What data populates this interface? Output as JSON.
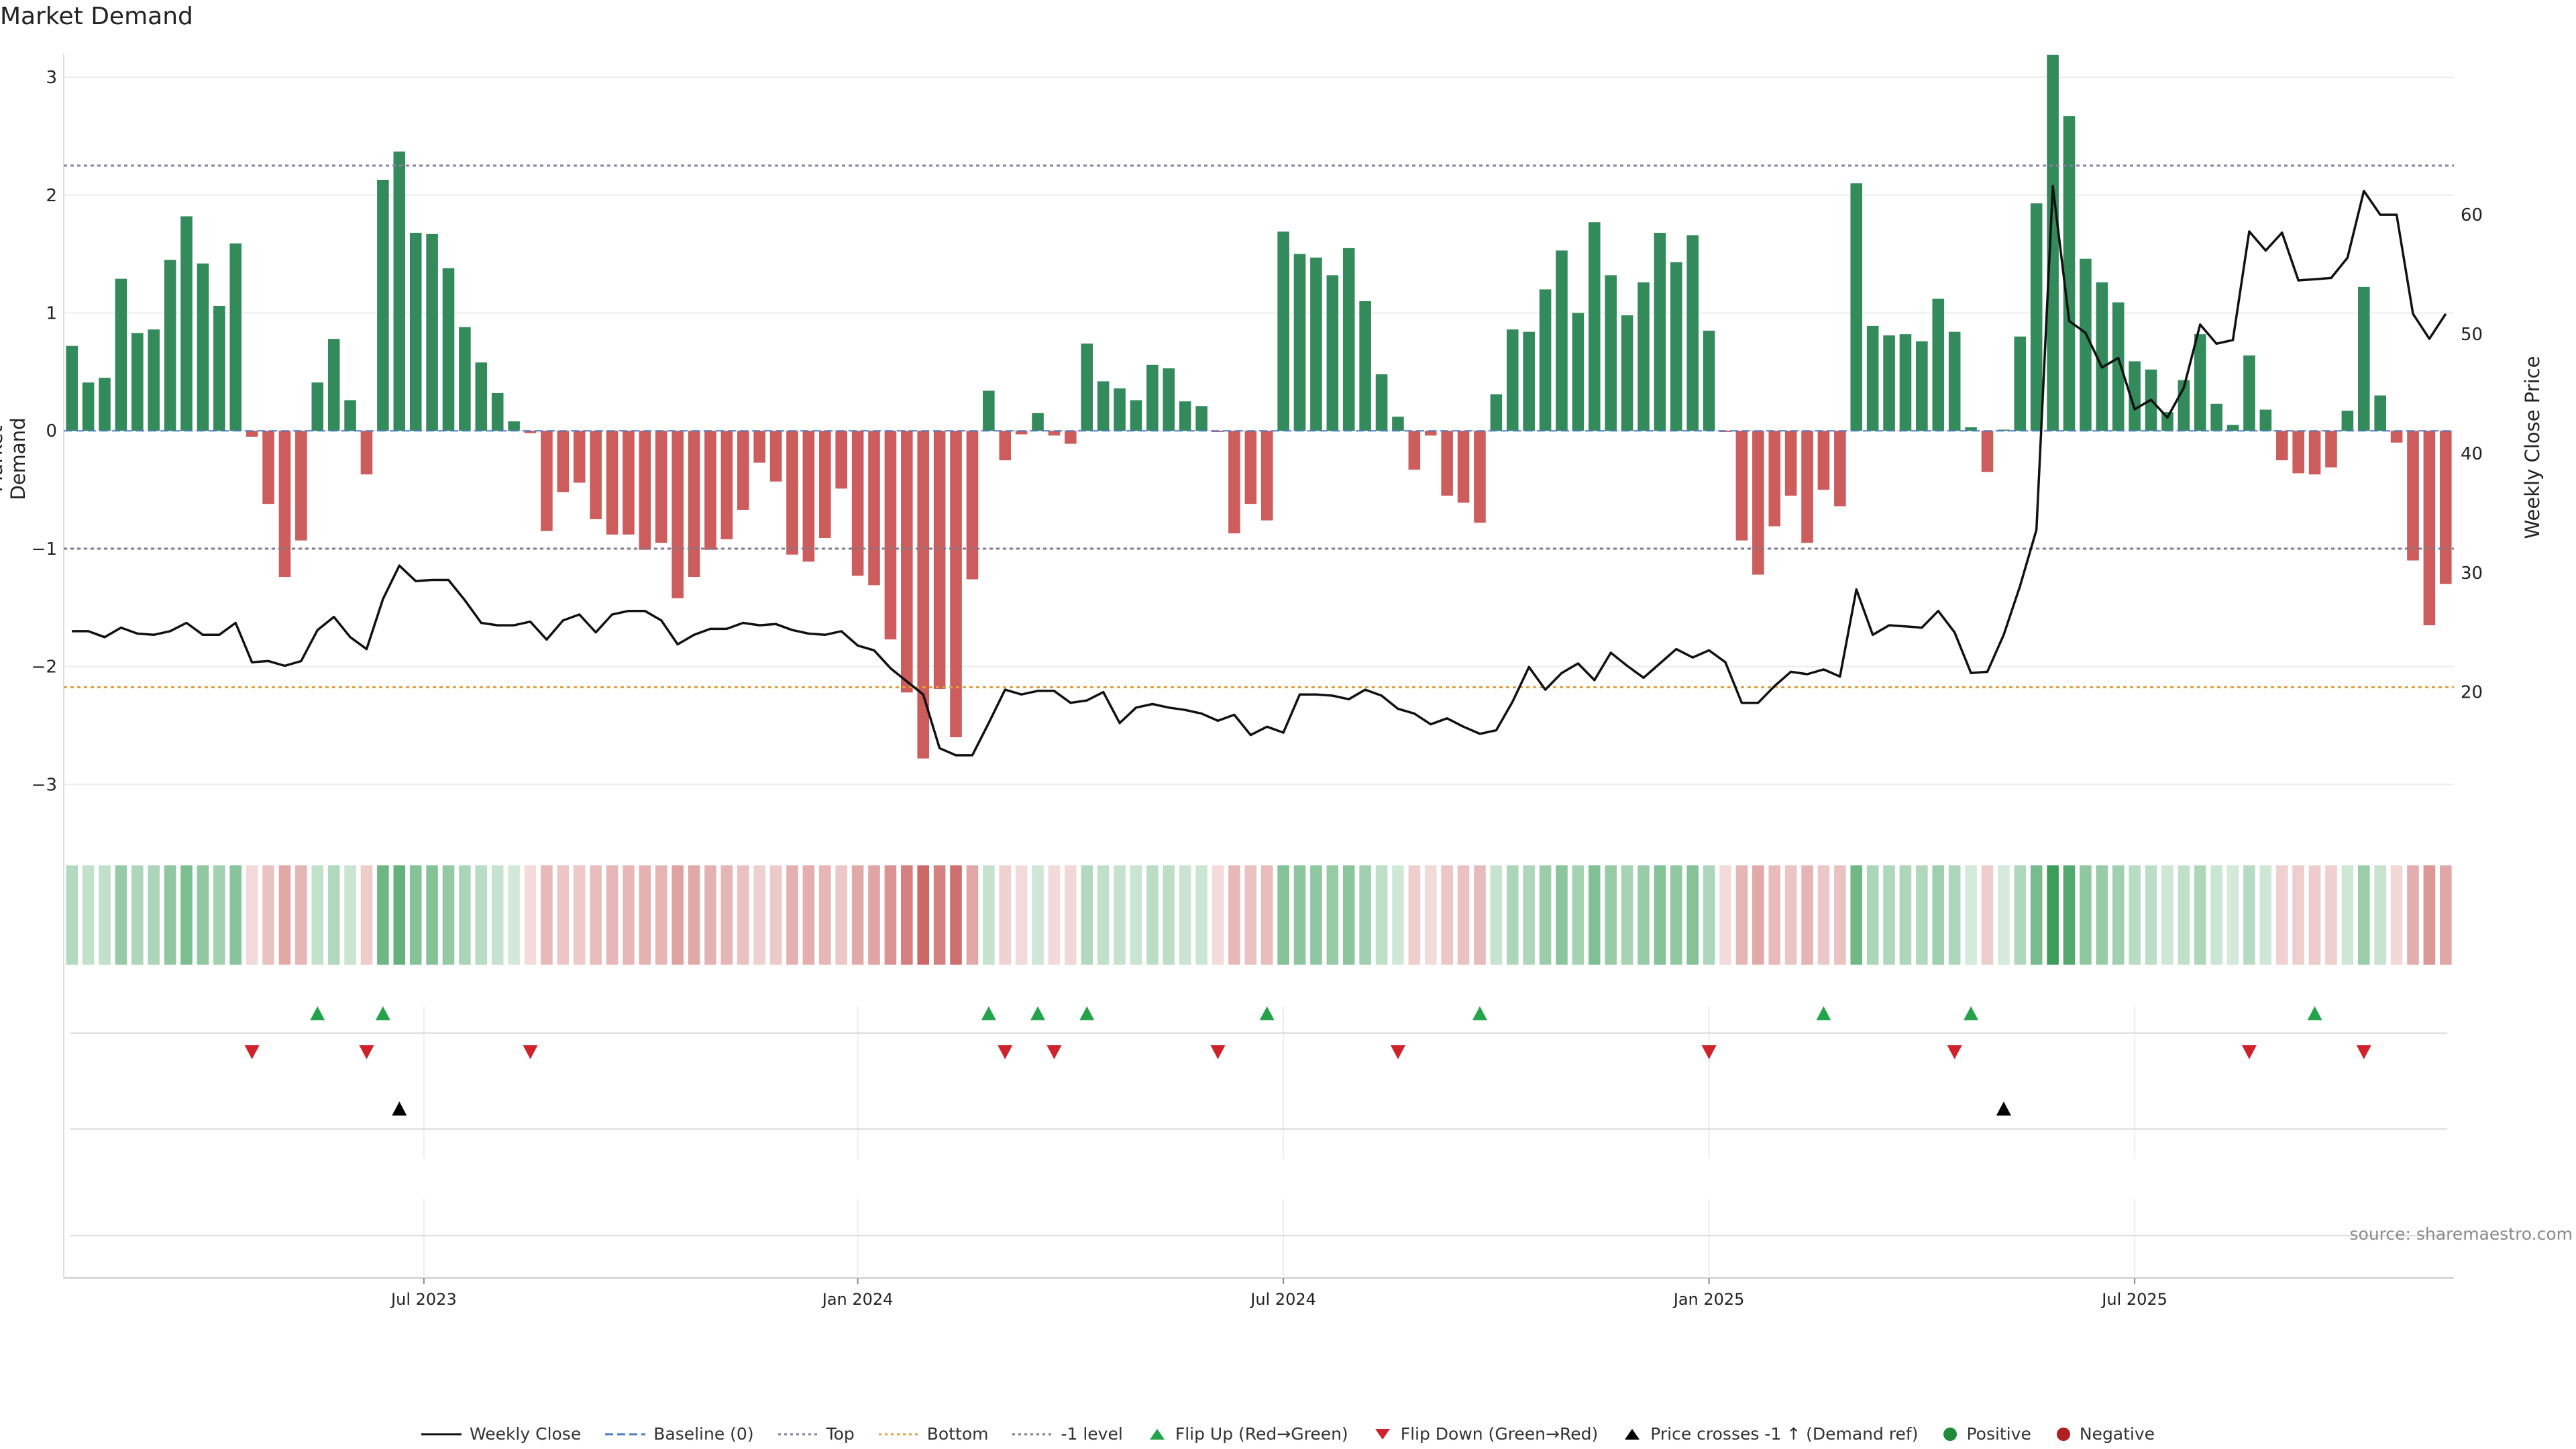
{
  "chart_data": {
    "type": "bar",
    "title": "Market Demand",
    "ylabel": "Market Demand",
    "ylabel_right": "Weekly Close Price",
    "ylim": [
      -3.3,
      3.2
    ],
    "ylim_right": [
      9.3,
      73.5
    ],
    "yticks": [
      "3",
      "2",
      "1",
      "0",
      "−1",
      "−2",
      "−3"
    ],
    "yticks_values": [
      3,
      2,
      1,
      0,
      -1,
      -2,
      -3
    ],
    "yticks_right": [
      "60",
      "50",
      "40",
      "30",
      "20"
    ],
    "yticks_right_values": [
      60,
      50,
      40,
      30,
      20
    ],
    "xticks": [
      "Jul 2023",
      "Jan 2024",
      "Jul 2024",
      "Jan 2025",
      "Jul 2025"
    ],
    "xticks_week_index": [
      22,
      48.5,
      74.5,
      100.5,
      126.5
    ],
    "reference_lines": {
      "top": 2.25,
      "bottom_price": 20.4,
      "minus_one": -1,
      "baseline": 0
    },
    "series": [
      {
        "name": "Market Demand",
        "values": [
          0.72,
          0.41,
          0.45,
          1.29,
          0.83,
          0.86,
          1.45,
          1.82,
          1.42,
          1.06,
          1.59,
          -0.05,
          -0.62,
          -1.24,
          -0.93,
          0.41,
          0.78,
          0.26,
          -0.37,
          2.13,
          2.37,
          1.68,
          1.67,
          1.38,
          0.88,
          0.58,
          0.32,
          0.08,
          -0.02,
          -0.85,
          -0.52,
          -0.44,
          -0.75,
          -0.88,
          -0.88,
          -1.01,
          -0.95,
          -1.42,
          -1.24,
          -1.01,
          -0.92,
          -0.67,
          -0.27,
          -0.43,
          -1.05,
          -1.11,
          -0.91,
          -0.49,
          -1.23,
          -1.31,
          -1.77,
          -2.22,
          -2.78,
          -2.19,
          -2.6,
          -1.26,
          0.34,
          -0.25,
          -0.03,
          0.15,
          -0.04,
          -0.11,
          0.74,
          0.42,
          0.36,
          0.26,
          0.56,
          0.53,
          0.25,
          0.21,
          -0.01,
          -0.87,
          -0.62,
          -0.76,
          1.69,
          1.5,
          1.47,
          1.32,
          1.55,
          1.1,
          0.48,
          0.12,
          -0.33,
          -0.04,
          -0.55,
          -0.61,
          -0.78,
          0.31,
          0.86,
          0.84,
          1.2,
          1.53,
          1.0,
          1.77,
          1.32,
          0.98,
          1.26,
          1.68,
          1.43,
          1.66,
          0.85,
          -0.01,
          -0.93,
          -1.22,
          -0.81,
          -0.55,
          -0.95,
          -0.5,
          -0.64,
          2.1,
          0.89,
          0.81,
          0.82,
          0.76,
          1.12,
          0.84,
          0.03,
          -0.35,
          0.01,
          0.8,
          1.93,
          3.19,
          2.67,
          1.46,
          1.26,
          1.09,
          0.59,
          0.52,
          0.16,
          0.43,
          0.82,
          0.23,
          0.05,
          0.64,
          0.18,
          -0.25,
          -0.36,
          -0.37,
          -0.31,
          0.17,
          1.22,
          0.3,
          -0.1,
          -1.1,
          -1.65,
          -1.3
        ]
      },
      {
        "name": "Weekly Close",
        "values": [
          25.1,
          25.1,
          24.6,
          25.4,
          24.9,
          24.8,
          25.1,
          25.8,
          24.8,
          24.8,
          25.8,
          22.5,
          22.6,
          22.2,
          22.6,
          25.2,
          26.3,
          24.6,
          23.6,
          27.8,
          30.6,
          29.3,
          29.4,
          29.4,
          27.7,
          25.8,
          25.6,
          25.6,
          25.9,
          24.4,
          26.0,
          26.5,
          25.0,
          26.5,
          26.8,
          26.8,
          26.0,
          24.0,
          24.8,
          25.3,
          25.3,
          25.8,
          25.6,
          25.7,
          25.2,
          24.9,
          24.8,
          25.1,
          23.9,
          23.5,
          22.0,
          20.9,
          19.8,
          15.3,
          14.7,
          14.7,
          17.4,
          20.2,
          19.8,
          20.1,
          20.1,
          19.1,
          19.3,
          20.0,
          17.4,
          18.7,
          19.0,
          18.7,
          18.5,
          18.2,
          17.6,
          18.1,
          16.4,
          17.1,
          16.6,
          19.8,
          19.8,
          19.7,
          19.4,
          20.2,
          19.7,
          18.6,
          18.2,
          17.3,
          17.8,
          17.1,
          16.5,
          16.8,
          19.2,
          22.1,
          20.2,
          21.6,
          22.4,
          21.0,
          23.3,
          22.2,
          21.2,
          22.4,
          23.6,
          22.9,
          23.5,
          22.5,
          19.1,
          19.1,
          20.5,
          21.7,
          21.5,
          21.9,
          21.3,
          28.6,
          24.8,
          25.6,
          25.5,
          25.4,
          26.8,
          25.0,
          21.6,
          21.7,
          24.8,
          28.9,
          33.6,
          62.4,
          51.1,
          50.1,
          47.2,
          48.0,
          43.7,
          44.5,
          43.0,
          45.5,
          50.8,
          49.2,
          49.5,
          58.6,
          57.0,
          58.5,
          54.5,
          54.6,
          54.7,
          56.4,
          62.0,
          60.0,
          60.0,
          51.7,
          49.6,
          51.7
        ]
      }
    ]
  },
  "chart_title": "Market Demand",
  "source": "source: sharemaestro.com",
  "colors": {
    "positive": "#338a5b",
    "negative": "#cd5c5c",
    "flip_up": "#23a34a",
    "flip_down": "#d0222b",
    "top": "#8a7fa6",
    "bottom": "#e0a040",
    "level": "#807a8a",
    "baseline": "#4a7fbf"
  },
  "events": {
    "flip_up": [
      15,
      19,
      56,
      59,
      62,
      73,
      86,
      107,
      116,
      137
    ],
    "flip_down": [
      11,
      18,
      28,
      57,
      60,
      70,
      81,
      100,
      115,
      133,
      140
    ],
    "price_cross": [
      20,
      118
    ]
  },
  "legend": [
    {
      "label": "Weekly Close",
      "icon": "line-solid"
    },
    {
      "label": "Baseline (0)",
      "icon": "line-dashed"
    },
    {
      "label": "Top",
      "icon": "line-dotted"
    },
    {
      "label": "Bottom",
      "icon": "line-dotted-orange"
    },
    {
      "label": "-1 level",
      "icon": "line-dotted-gray"
    },
    {
      "label": "Flip Up (Red→Green)",
      "icon": "triangle-up-green"
    },
    {
      "label": "Flip Down (Green→Red)",
      "icon": "triangle-down-red"
    },
    {
      "label": "Price crosses -1 ↑ (Demand ref)",
      "icon": "triangle-up-black"
    },
    {
      "label": "Positive",
      "icon": "dot-green"
    },
    {
      "label": "Negative",
      "icon": "dot-red"
    }
  ]
}
